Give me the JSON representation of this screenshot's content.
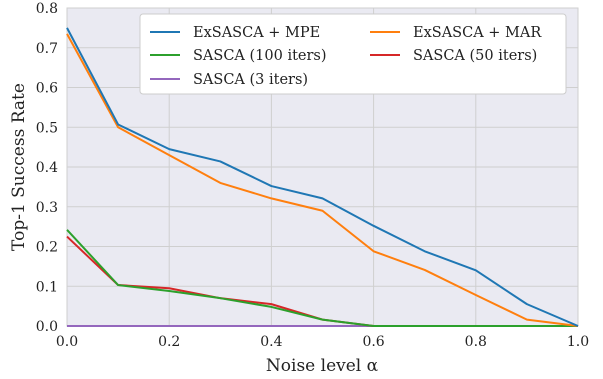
{
  "chart_data": {
    "type": "line",
    "xlabel": "Noise level α",
    "ylabel": "Top-1 Success Rate",
    "xlim": [
      0.0,
      1.0
    ],
    "ylim": [
      0.0,
      0.8
    ],
    "x_ticks": [
      "0.0",
      "0.2",
      "0.4",
      "0.6",
      "0.8",
      "1.0"
    ],
    "y_ticks": [
      "0.0",
      "0.1",
      "0.2",
      "0.3",
      "0.4",
      "0.5",
      "0.6",
      "0.7",
      "0.8"
    ],
    "grid": true,
    "legend_position": "top-right",
    "x": [
      0.0,
      0.1,
      0.2,
      0.3,
      0.4,
      0.5,
      0.6,
      0.7,
      0.8,
      0.9,
      1.0
    ],
    "series": [
      {
        "name": "ExSASCA + MPE",
        "color": "#1f77b4",
        "values": [
          0.75,
          0.507,
          0.445,
          0.414,
          0.352,
          0.321,
          0.252,
          0.188,
          0.14,
          0.055,
          0.0
        ]
      },
      {
        "name": "ExSASCA + MAR",
        "color": "#ff7f0e",
        "values": [
          0.735,
          0.5,
          0.43,
          0.36,
          0.321,
          0.29,
          0.188,
          0.141,
          0.078,
          0.016,
          0.0
        ]
      },
      {
        "name": "SASCA (100 iters)",
        "color": "#2ca02c",
        "values": [
          0.242,
          0.103,
          0.088,
          0.07,
          0.048,
          0.016,
          0.0,
          0.0,
          0.0,
          0.0,
          0.0
        ]
      },
      {
        "name": "SASCA (50 iters)",
        "color": "#d62728",
        "values": [
          0.225,
          0.103,
          0.095,
          0.07,
          0.055,
          0.016,
          0.0,
          0.0,
          0.0,
          0.0,
          0.0
        ]
      },
      {
        "name": "SASCA (3 iters)",
        "color": "#9467bd",
        "values": [
          0.0,
          0.0,
          0.0,
          0.0,
          0.0,
          0.0,
          0.0,
          0.0,
          0.0,
          0.0,
          0.0
        ]
      }
    ]
  }
}
